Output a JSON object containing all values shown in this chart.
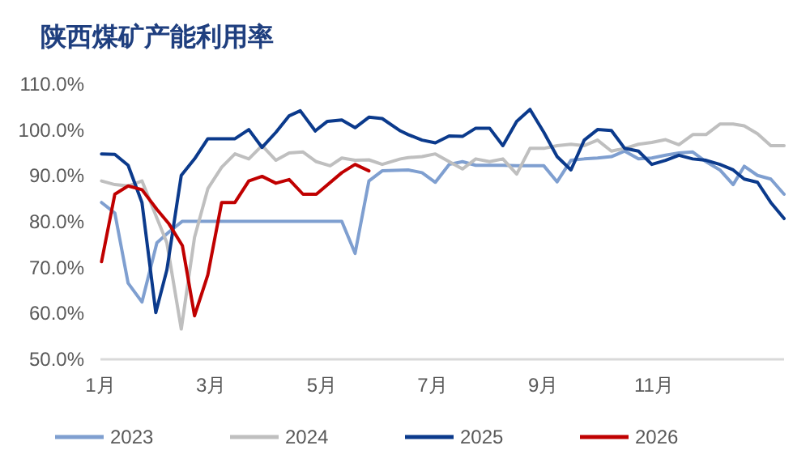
{
  "chart_data": {
    "type": "line",
    "title": "陕西煤矿产能利用率",
    "xlim": [
      1,
      13.35
    ],
    "xticks": [
      {
        "value": 1,
        "label": "1月"
      },
      {
        "value": 3,
        "label": "3月"
      },
      {
        "value": 5,
        "label": "5月"
      },
      {
        "value": 7,
        "label": "7月"
      },
      {
        "value": 9,
        "label": "9月"
      },
      {
        "value": 11,
        "label": "11月"
      }
    ],
    "ylim": [
      50,
      110
    ],
    "yticks": [
      {
        "value": 50,
        "label": "50.0%"
      },
      {
        "value": 60,
        "label": "60.0%"
      },
      {
        "value": 70,
        "label": "70.0%"
      },
      {
        "value": 80,
        "label": "80.0%"
      },
      {
        "value": 90,
        "label": "90.0%"
      },
      {
        "value": 100,
        "label": "100.0%"
      },
      {
        "value": 110,
        "label": "110.0%"
      }
    ],
    "grid": false,
    "legend": "bottom",
    "marker": "none",
    "line_style": "solid",
    "series": [
      {
        "name": "2023",
        "color": "#7f9fd0",
        "x": [
          1.02,
          1.26,
          1.5,
          1.75,
          2.02,
          2.24,
          2.48,
          5.36,
          5.6,
          5.85,
          6.09,
          6.56,
          6.81,
          7.05,
          7.3,
          7.54,
          7.78,
          8.03,
          8.27,
          8.52,
          8.76,
          9.01,
          9.25,
          9.5,
          9.74,
          9.98,
          10.23,
          10.47,
          10.72,
          10.96,
          11.21,
          11.45,
          11.7,
          11.94,
          12.19,
          12.43,
          12.63,
          12.87,
          13.11,
          13.35
        ],
        "values": [
          84.2,
          81.9,
          66.6,
          62.5,
          75.4,
          77.8,
          80.1,
          80.1,
          73.1,
          88.9,
          91.1,
          91.3,
          90.7,
          88.6,
          92.5,
          93.1,
          92.3,
          92.3,
          92.3,
          92.2,
          92.2,
          92.2,
          88.7,
          93.4,
          93.7,
          93.9,
          94.2,
          95.4,
          93.7,
          93.9,
          94.5,
          95.0,
          95.2,
          93.1,
          91.3,
          88.1,
          92.1,
          90.1,
          89.3,
          86.0
        ]
      },
      {
        "name": "2024",
        "color": "#bfbfbf",
        "x": [
          1.02,
          1.26,
          1.5,
          1.75,
          2.2,
          2.46,
          2.7,
          2.94,
          3.19,
          3.43,
          3.68,
          3.92,
          4.17,
          4.41,
          4.66,
          4.9,
          5.15,
          5.36,
          5.6,
          5.85,
          6.09,
          6.42,
          6.56,
          6.81,
          7.05,
          7.3,
          7.54,
          7.78,
          8.03,
          8.27,
          8.52,
          8.76,
          9.01,
          9.25,
          9.5,
          9.74,
          9.98,
          10.23,
          10.47,
          10.72,
          10.96,
          11.21,
          11.45,
          11.7,
          11.94,
          12.19,
          12.43,
          12.63,
          12.87,
          13.11,
          13.35
        ],
        "values": [
          88.9,
          88.1,
          87.8,
          88.9,
          75.4,
          56.6,
          76.6,
          87.2,
          91.9,
          94.8,
          93.7,
          96.6,
          93.4,
          95.0,
          95.2,
          93.1,
          92.2,
          93.9,
          93.4,
          93.5,
          92.5,
          93.7,
          94.0,
          94.2,
          94.8,
          93.1,
          91.5,
          93.7,
          93.1,
          93.7,
          90.4,
          96.0,
          96.0,
          96.6,
          96.9,
          96.6,
          97.8,
          95.4,
          96.0,
          96.9,
          97.3,
          97.9,
          96.8,
          99.0,
          99.0,
          101.3,
          101.3,
          100.9,
          99.2,
          96.6,
          96.6
        ]
      },
      {
        "name": "2025",
        "color": "#0b3a8c",
        "x": [
          1.02,
          1.26,
          1.5,
          1.75,
          2.0,
          2.2,
          2.46,
          2.7,
          2.94,
          3.19,
          3.43,
          3.68,
          3.92,
          4.17,
          4.41,
          4.61,
          4.88,
          5.1,
          5.36,
          5.6,
          5.85,
          6.09,
          6.42,
          6.56,
          6.81,
          7.05,
          7.3,
          7.54,
          7.78,
          8.03,
          8.27,
          8.52,
          8.76,
          9.01,
          9.25,
          9.5,
          9.74,
          9.98,
          10.23,
          10.47,
          10.72,
          10.96,
          11.21,
          11.45,
          11.7,
          11.94,
          12.19,
          12.43,
          12.63,
          12.87,
          13.11,
          13.35
        ],
        "values": [
          94.8,
          94.7,
          92.3,
          84.2,
          60.2,
          69.5,
          90.1,
          93.7,
          98.1,
          98.1,
          98.1,
          100.1,
          96.2,
          99.5,
          103.1,
          104.2,
          99.8,
          101.9,
          102.2,
          100.5,
          102.8,
          102.5,
          99.8,
          99.0,
          97.8,
          97.2,
          98.7,
          98.6,
          100.4,
          100.4,
          96.6,
          101.9,
          104.5,
          99.5,
          94.2,
          91.3,
          97.8,
          100.1,
          99.9,
          96.0,
          95.4,
          92.5,
          93.4,
          94.5,
          93.7,
          93.4,
          92.5,
          91.3,
          89.3,
          88.6,
          84.2,
          80.7
        ]
      },
      {
        "name": "2026",
        "color": "#c00000",
        "x": [
          1.02,
          1.26,
          1.5,
          1.75,
          2.02,
          2.24,
          2.48,
          2.7,
          2.94,
          3.19,
          3.43,
          3.68,
          3.92,
          4.17,
          4.41,
          4.66,
          4.9,
          5.36,
          5.6,
          5.85
        ],
        "values": [
          71.3,
          86.0,
          87.8,
          87.0,
          82.7,
          79.5,
          74.8,
          59.5,
          68.4,
          84.2,
          84.2,
          88.9,
          89.9,
          88.4,
          89.2,
          86.0,
          86.0,
          90.7,
          92.5,
          91.1
        ]
      }
    ]
  }
}
